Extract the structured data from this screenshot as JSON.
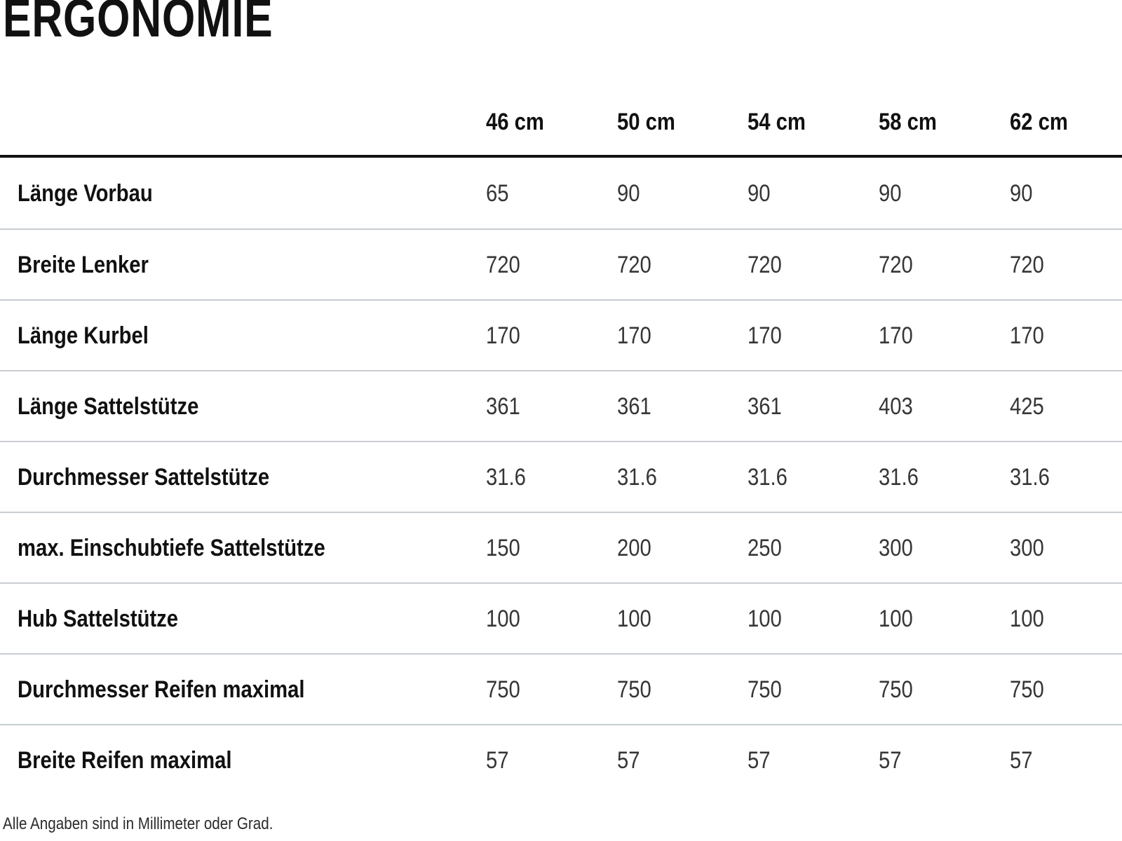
{
  "title": "ERGONOMIE",
  "footnote": "Alle Angaben sind in Millimeter oder Grad.",
  "table": {
    "columns": [
      "46 cm",
      "50 cm",
      "54 cm",
      "58 cm",
      "62 cm"
    ],
    "rows": [
      {
        "label": "Länge Vorbau",
        "values": [
          "65",
          "90",
          "90",
          "90",
          "90"
        ]
      },
      {
        "label": "Breite Lenker",
        "values": [
          "720",
          "720",
          "720",
          "720",
          "720"
        ]
      },
      {
        "label": "Länge Kurbel",
        "values": [
          "170",
          "170",
          "170",
          "170",
          "170"
        ]
      },
      {
        "label": "Länge Sattelstütze",
        "values": [
          "361",
          "361",
          "361",
          "403",
          "425"
        ]
      },
      {
        "label": "Durchmesser Sattelstütze",
        "values": [
          "31.6",
          "31.6",
          "31.6",
          "31.6",
          "31.6"
        ]
      },
      {
        "label": "max. Einschubtiefe Sattelstütze",
        "values": [
          "150",
          "200",
          "250",
          "300",
          "300"
        ]
      },
      {
        "label": "Hub Sattelstütze",
        "values": [
          "100",
          "100",
          "100",
          "100",
          "100"
        ]
      },
      {
        "label": "Durchmesser Reifen maximal",
        "values": [
          "750",
          "750",
          "750",
          "750",
          "750"
        ]
      },
      {
        "label": "Breite Reifen maximal",
        "values": [
          "57",
          "57",
          "57",
          "57",
          "57"
        ]
      }
    ]
  },
  "colors": {
    "background": "#ffffff",
    "heading_text": "#111111",
    "value_text": "#363636",
    "header_rule": "#121212",
    "row_rule": "#c9cdd1"
  }
}
